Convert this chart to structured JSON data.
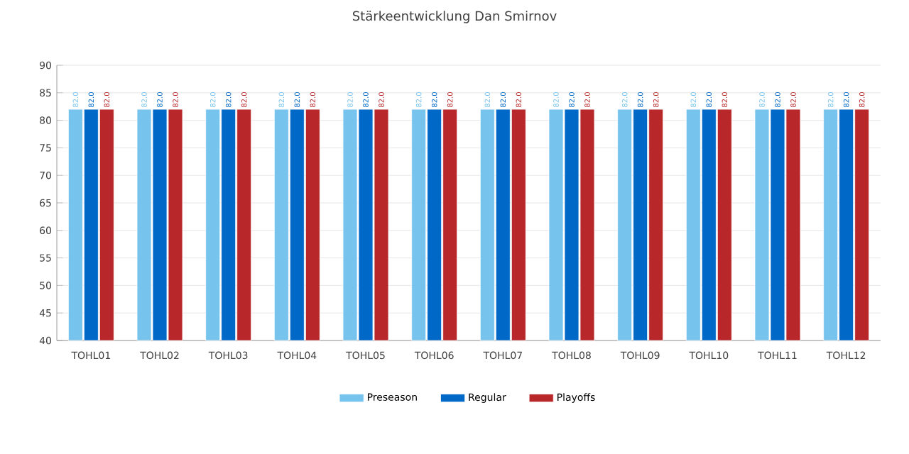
{
  "chart_data": {
    "type": "bar",
    "title": "Stärkeentwicklung Dan Smirnov",
    "categories": [
      "TOHL01",
      "TOHL02",
      "TOHL03",
      "TOHL04",
      "TOHL05",
      "TOHL06",
      "TOHL07",
      "TOHL08",
      "TOHL09",
      "TOHL10",
      "TOHL11",
      "TOHL12"
    ],
    "series": [
      {
        "name": "Preseason",
        "color": "#76c3ee",
        "values": [
          82.0,
          82.0,
          82.0,
          82.0,
          82.0,
          82.0,
          82.0,
          82.0,
          82.0,
          82.0,
          82.0,
          82.0
        ],
        "value_labels": [
          "82.0",
          "82.0",
          "82.0",
          "82.0",
          "82.0",
          "82.0",
          "82.0",
          "82.0",
          "82.0",
          "82.0",
          "82.0",
          "82.0"
        ]
      },
      {
        "name": "Regular",
        "color": "#0068c6",
        "values": [
          82.0,
          82.0,
          82.0,
          82.0,
          82.0,
          82.0,
          82.0,
          82.0,
          82.0,
          82.0,
          82.0,
          82.0
        ],
        "value_labels": [
          "82.0",
          "82.0",
          "82.0",
          "82.0",
          "82.0",
          "82.0",
          "82.0",
          "82.0",
          "82.0",
          "82.0",
          "82.0",
          "82.0"
        ]
      },
      {
        "name": "Playoffs",
        "color": "#b8282a",
        "values": [
          82.0,
          82.0,
          82.0,
          82.0,
          82.0,
          82.0,
          82.0,
          82.0,
          82.0,
          82.0,
          82.0,
          82.0
        ],
        "value_labels": [
          "82.0",
          "82.0",
          "82.0",
          "82.0",
          "82.0",
          "82.0",
          "82.0",
          "82.0",
          "82.0",
          "82.0",
          "82.0",
          "82.0"
        ]
      }
    ],
    "ylim": [
      40,
      90
    ],
    "yticks": [
      40,
      45,
      50,
      55,
      60,
      65,
      70,
      75,
      80,
      85,
      90
    ],
    "grid": "y",
    "legend": "bottom"
  }
}
